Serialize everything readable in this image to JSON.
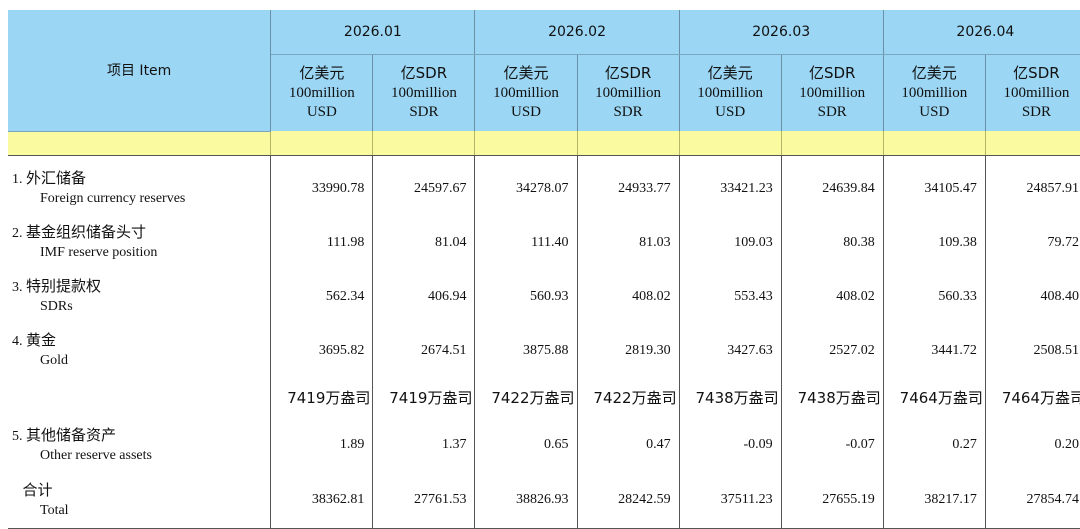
{
  "header": {
    "item": "项目 Item",
    "periods": [
      "2026.01",
      "2026.02",
      "2026.03",
      "2026.04"
    ],
    "unit_usd": {
      "zh": "亿美元",
      "en1": "100million",
      "en2": "USD"
    },
    "unit_sdr": {
      "zh": "亿SDR",
      "en1": "100million",
      "en2": "SDR"
    }
  },
  "rows": [
    {
      "num": "1.",
      "zh": "外汇储备",
      "en": "Foreign currency reserves",
      "values": [
        "33990.78",
        "24597.67",
        "34278.07",
        "24933.77",
        "33421.23",
        "24639.84",
        "34105.47",
        "24857.91"
      ]
    },
    {
      "num": "2.",
      "zh": "基金组织储备头寸",
      "en": "IMF reserve position",
      "values": [
        "111.98",
        "81.04",
        "111.40",
        "81.03",
        "109.03",
        "80.38",
        "109.38",
        "79.72"
      ]
    },
    {
      "num": "3.",
      "zh": "特别提款权",
      "en": "SDRs",
      "values": [
        "562.34",
        "406.94",
        "560.93",
        "408.02",
        "553.43",
        "408.02",
        "560.33",
        "408.40"
      ]
    },
    {
      "num": "4.",
      "zh": "黄金",
      "en": "Gold",
      "values": [
        "3695.82",
        "2674.51",
        "3875.88",
        "2819.30",
        "3427.63",
        "2527.02",
        "3441.72",
        "2508.51"
      ]
    }
  ],
  "gold_ounces": [
    "7419万盎司",
    "7419万盎司",
    "7422万盎司",
    "7422万盎司",
    "7438万盎司",
    "7438万盎司",
    "7464万盎司",
    "7464万盎司"
  ],
  "other": {
    "num": "5.",
    "zh": "其他储备资产",
    "en": "Other reserve assets",
    "values": [
      "1.89",
      "1.37",
      "0.65",
      "0.47",
      "-0.09",
      "-0.07",
      "0.27",
      "0.20"
    ]
  },
  "total": {
    "zh": "合计",
    "en": "Total",
    "values": [
      "38362.81",
      "27761.53",
      "38826.93",
      "28242.59",
      "37511.23",
      "27655.19",
      "38217.17",
      "27854.74"
    ]
  }
}
